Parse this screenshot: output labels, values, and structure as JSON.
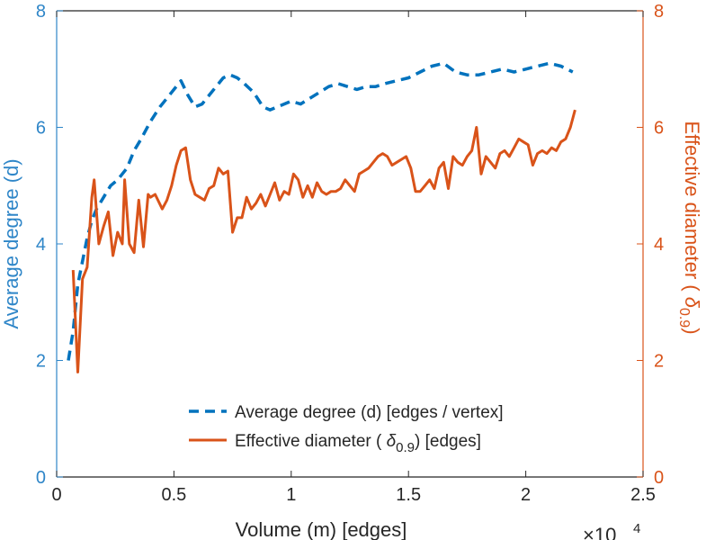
{
  "colors": {
    "left_axis": "#2f86c8",
    "right_axis": "#d95319",
    "degree_series": "#0072bd",
    "diameter_series": "#d95319",
    "axis_black": "#262626"
  },
  "chart_data": {
    "type": "line",
    "xlabel": "Volume (m) [edges]",
    "x_exponent_label": "×10",
    "x_exponent_power": "4",
    "xlim": [
      0,
      2.5
    ],
    "x_ticks": [
      0,
      0.5,
      1,
      1.5,
      2,
      2.5
    ],
    "x_tick_labels": [
      "0",
      "0.5",
      "1",
      "1.5",
      "2",
      "2.5"
    ],
    "ylabel_left": "Average degree (d)",
    "ylim_left": [
      0,
      8
    ],
    "y_ticks_left": [
      0,
      2,
      4,
      6,
      8
    ],
    "y_tick_labels_left": [
      "0",
      "2",
      "4",
      "6",
      "8"
    ],
    "ylabel_right_prefix": "Effective diameter (",
    "ylabel_right_symbol": "δ",
    "ylabel_right_subscript": "0.9",
    "ylabel_right_suffix": ")",
    "ylim_right": [
      0,
      8
    ],
    "y_ticks_right": [
      0,
      2,
      4,
      6,
      8
    ],
    "y_tick_labels_right": [
      "0",
      "2",
      "4",
      "6",
      "8"
    ],
    "grid": false,
    "legend_position": "bottom-right",
    "legend": [
      {
        "text": "Average degree (d) [edges / vertex]"
      },
      {
        "text_prefix": "Effective diameter (",
        "symbol": "δ",
        "subscript": "0.9",
        "text_suffix": ") [edges]"
      }
    ],
    "series": [
      {
        "name": "Average degree (d) [edges / vertex]",
        "axis": "left",
        "style": "dashed",
        "x": [
          0.05,
          0.07,
          0.09,
          0.11,
          0.13,
          0.15,
          0.17,
          0.2,
          0.23,
          0.26,
          0.3,
          0.33,
          0.36,
          0.4,
          0.44,
          0.48,
          0.51,
          0.53,
          0.56,
          0.59,
          0.62,
          0.65,
          0.68,
          0.71,
          0.74,
          0.77,
          0.8,
          0.84,
          0.88,
          0.91,
          0.94,
          0.97,
          1.0,
          1.04,
          1.08,
          1.12,
          1.16,
          1.2,
          1.24,
          1.28,
          1.32,
          1.36,
          1.4,
          1.45,
          1.5,
          1.55,
          1.6,
          1.65,
          1.7,
          1.75,
          1.8,
          1.85,
          1.9,
          1.95,
          2.0,
          2.05,
          2.1,
          2.15,
          2.2
        ],
        "values": [
          2.0,
          2.5,
          3.3,
          3.7,
          4.1,
          4.4,
          4.6,
          4.8,
          5.0,
          5.1,
          5.3,
          5.6,
          5.8,
          6.1,
          6.35,
          6.55,
          6.7,
          6.8,
          6.55,
          6.35,
          6.4,
          6.55,
          6.7,
          6.85,
          6.9,
          6.85,
          6.75,
          6.6,
          6.35,
          6.3,
          6.35,
          6.4,
          6.45,
          6.4,
          6.5,
          6.6,
          6.7,
          6.75,
          6.7,
          6.65,
          6.7,
          6.7,
          6.75,
          6.8,
          6.85,
          6.95,
          7.05,
          7.1,
          6.95,
          6.9,
          6.9,
          6.95,
          7.0,
          6.95,
          7.0,
          7.05,
          7.1,
          7.05,
          6.95
        ]
      },
      {
        "name": "Effective diameter (δ0.9) [edges]",
        "axis": "right",
        "style": "solid",
        "x": [
          0.07,
          0.09,
          0.11,
          0.13,
          0.15,
          0.16,
          0.18,
          0.2,
          0.22,
          0.24,
          0.26,
          0.28,
          0.29,
          0.31,
          0.33,
          0.35,
          0.37,
          0.39,
          0.4,
          0.42,
          0.45,
          0.47,
          0.49,
          0.51,
          0.53,
          0.55,
          0.57,
          0.59,
          0.61,
          0.63,
          0.65,
          0.67,
          0.69,
          0.71,
          0.73,
          0.75,
          0.77,
          0.79,
          0.81,
          0.83,
          0.85,
          0.87,
          0.89,
          0.91,
          0.93,
          0.95,
          0.97,
          0.99,
          1.01,
          1.03,
          1.05,
          1.07,
          1.09,
          1.11,
          1.13,
          1.15,
          1.17,
          1.19,
          1.21,
          1.23,
          1.25,
          1.27,
          1.29,
          1.31,
          1.33,
          1.35,
          1.37,
          1.39,
          1.41,
          1.43,
          1.45,
          1.47,
          1.49,
          1.51,
          1.53,
          1.55,
          1.57,
          1.59,
          1.61,
          1.63,
          1.65,
          1.67,
          1.69,
          1.71,
          1.73,
          1.75,
          1.77,
          1.79,
          1.81,
          1.83,
          1.85,
          1.87,
          1.89,
          1.91,
          1.93,
          1.95,
          1.97,
          1.99,
          2.01,
          2.03,
          2.05,
          2.07,
          2.09,
          2.11,
          2.13,
          2.15,
          2.17,
          2.19,
          2.21
        ],
        "values": [
          3.55,
          1.8,
          3.4,
          3.6,
          4.8,
          5.1,
          4.0,
          4.3,
          4.55,
          3.8,
          4.2,
          4.0,
          5.1,
          4.0,
          3.85,
          4.75,
          3.95,
          4.85,
          4.8,
          4.85,
          4.6,
          4.75,
          5.0,
          5.35,
          5.6,
          5.65,
          5.1,
          4.85,
          4.8,
          4.75,
          4.95,
          5.0,
          5.3,
          5.2,
          5.25,
          4.2,
          4.45,
          4.45,
          4.8,
          4.6,
          4.7,
          4.85,
          4.65,
          4.85,
          5.05,
          4.75,
          4.9,
          4.85,
          5.2,
          5.1,
          4.8,
          5.0,
          4.8,
          5.05,
          4.9,
          4.85,
          4.9,
          4.9,
          4.95,
          5.1,
          5.0,
          4.9,
          5.2,
          5.25,
          5.3,
          5.4,
          5.5,
          5.55,
          5.5,
          5.35,
          5.4,
          5.45,
          5.5,
          5.3,
          4.9,
          4.9,
          5.0,
          5.1,
          4.95,
          5.3,
          5.4,
          4.95,
          5.5,
          5.4,
          5.35,
          5.5,
          5.6,
          6.0,
          5.2,
          5.5,
          5.4,
          5.3,
          5.55,
          5.6,
          5.5,
          5.65,
          5.8,
          5.75,
          5.7,
          5.35,
          5.55,
          5.6,
          5.55,
          5.65,
          5.6,
          5.75,
          5.8,
          6.0,
          6.3
        ]
      }
    ]
  }
}
